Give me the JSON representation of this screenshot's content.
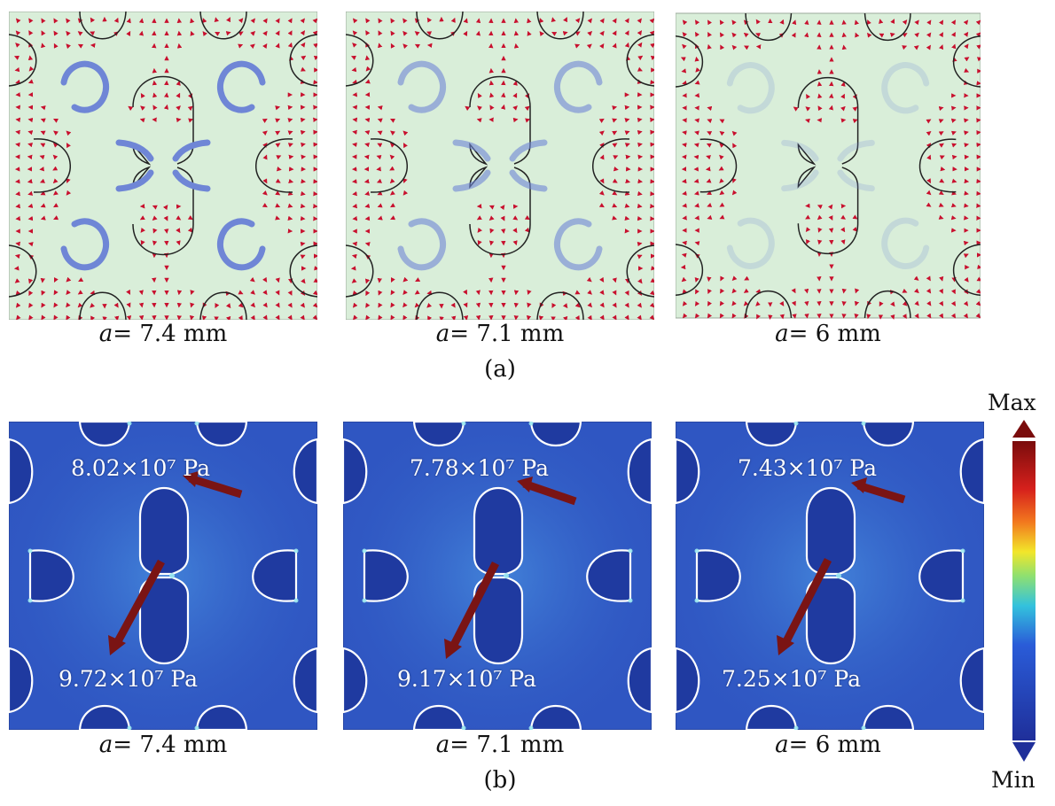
{
  "figure": {
    "row_a": {
      "panels": [
        {
          "a_symbol": "a",
          "a_value": "= 7.4 mm"
        },
        {
          "a_symbol": "a",
          "a_value": "= 7.1 mm"
        },
        {
          "a_symbol": "a",
          "a_value": "= 6 mm"
        }
      ],
      "sublabel": "(a)"
    },
    "row_b": {
      "panels": [
        {
          "a_symbol": "a",
          "a_value": "= 7.4 mm",
          "stress_top": "8.02×10⁷ Pa",
          "stress_bottom": "9.72×10⁷ Pa"
        },
        {
          "a_symbol": "a",
          "a_value": "= 7.1 mm",
          "stress_top": "7.78×10⁷ Pa",
          "stress_bottom": "9.17×10⁷ Pa"
        },
        {
          "a_symbol": "a",
          "a_value": "= 6 mm",
          "stress_top": "7.43×10⁷ Pa",
          "stress_bottom": "7.25×10⁷ Pa"
        }
      ],
      "sublabel": "(b)"
    },
    "colorbar": {
      "max_label": "Max",
      "min_label": "Min"
    }
  },
  "colors": {
    "field_bg": "#d9eed9",
    "arrow_red": "#c8102e",
    "rotation_blue": "#6f86d6",
    "stress_bg": "#2f56c2",
    "pointer_arrow": "#7a1414"
  }
}
